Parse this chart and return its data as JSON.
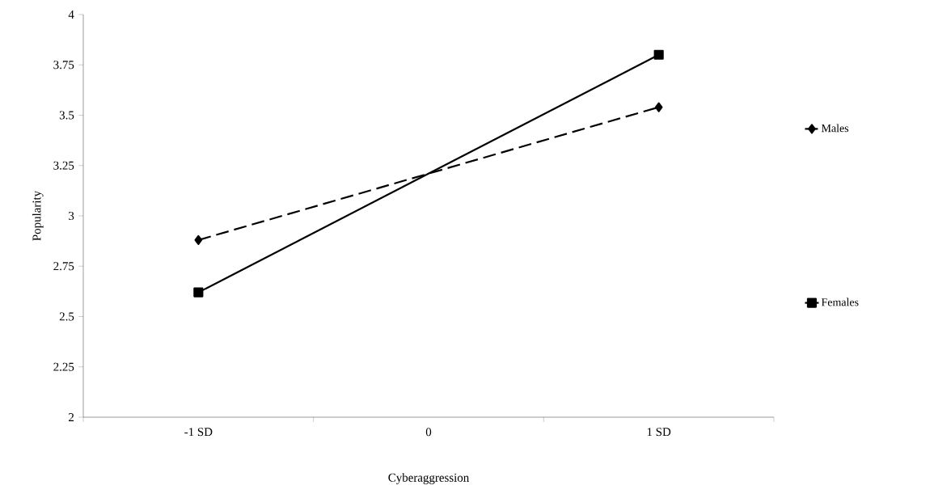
{
  "chart_data": {
    "type": "line",
    "xlabel": "Cyberaggression",
    "ylabel": "Popularity",
    "x": [
      -1,
      1
    ],
    "series": [
      {
        "name": "Males",
        "color": "#000000",
        "values": [
          2.88,
          3.54
        ],
        "marker": "diamond",
        "line_style": "dashed"
      },
      {
        "name": "Females",
        "color": "#000000",
        "values": [
          2.62,
          3.8
        ],
        "marker": "square",
        "line_style": "solid"
      }
    ],
    "xlim": [
      -1.5,
      1.5
    ],
    "xticks": [
      {
        "value": -1.5,
        "label": null
      },
      {
        "value": -1,
        "label": "-1 SD"
      },
      {
        "value": -0.5,
        "label": null
      },
      {
        "value": 0,
        "label": "0"
      },
      {
        "value": 0.5,
        "label": null
      },
      {
        "value": 1,
        "label": "1 SD"
      },
      {
        "value": 1.5,
        "label": null
      }
    ],
    "ylim": [
      2,
      4
    ],
    "yticks": [
      2,
      2.25,
      2.5,
      2.75,
      3,
      3.25,
      3.5,
      3.75,
      4
    ],
    "grid": false,
    "legend": "right"
  }
}
